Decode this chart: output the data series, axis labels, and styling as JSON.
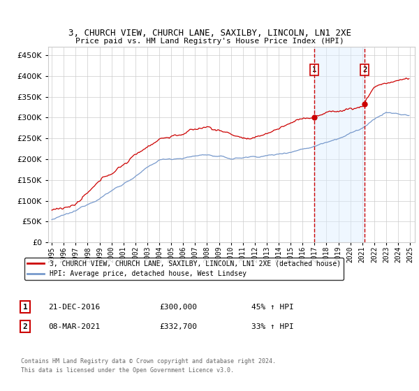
{
  "title": "3, CHURCH VIEW, CHURCH LANE, SAXILBY, LINCOLN, LN1 2XE",
  "subtitle": "Price paid vs. HM Land Registry's House Price Index (HPI)",
  "ylim": [
    0,
    470000
  ],
  "yticks": [
    0,
    50000,
    100000,
    150000,
    200000,
    250000,
    300000,
    350000,
    400000,
    450000
  ],
  "year_start": 1995,
  "year_end": 2025,
  "sale1_date": "21-DEC-2016",
  "sale1_price": 300000,
  "sale1_pct": "45%",
  "sale1_year": 2016.97,
  "sale2_date": "08-MAR-2021",
  "sale2_price": 332700,
  "sale2_pct": "33%",
  "sale2_year": 2021.19,
  "legend_label1": "3, CHURCH VIEW, CHURCH LANE, SAXILBY, LINCOLN, LN1 2XE (detached house)",
  "legend_label2": "HPI: Average price, detached house, West Lindsey",
  "footer1": "Contains HM Land Registry data © Crown copyright and database right 2024.",
  "footer2": "This data is licensed under the Open Government Licence v3.0.",
  "line_color_red": "#cc0000",
  "line_color_blue": "#7799cc",
  "shade_color": "#ddeeff",
  "grid_color": "#cccccc",
  "bg_color": "#ffffff",
  "sale_vline_color": "#cc0000",
  "shade_alpha": 0.45
}
